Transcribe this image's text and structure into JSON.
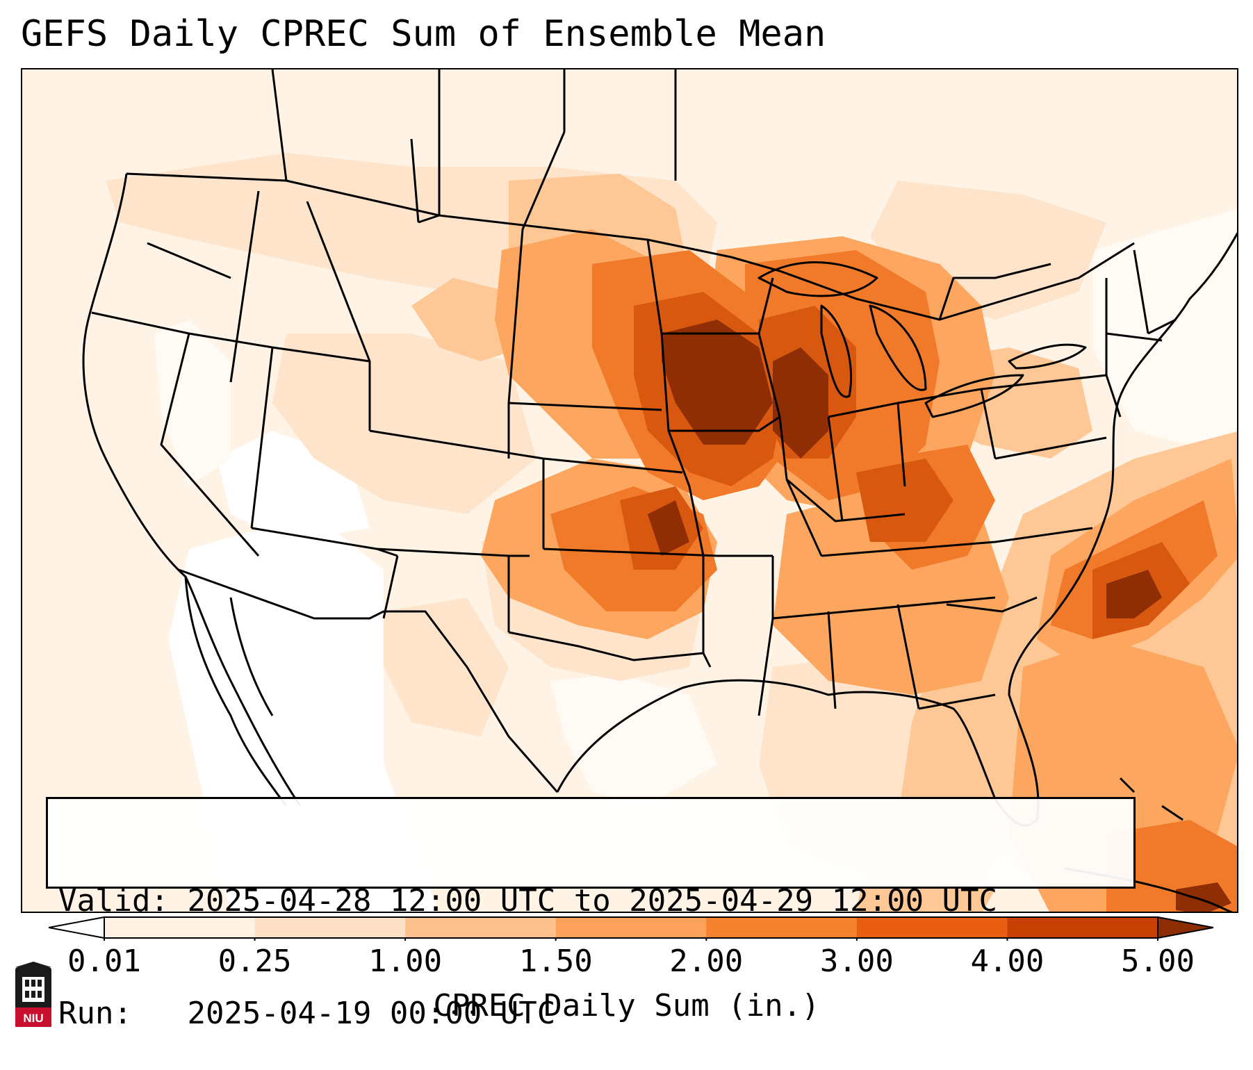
{
  "title": "GEFS Daily CPREC Sum of Ensemble Mean",
  "info": {
    "valid_label": "Valid:",
    "valid_value": "2025-04-28 12:00 UTC to 2025-04-29 12:00 UTC",
    "run_label": "Run:",
    "run_value": "2025-04-19 00:00 UTC"
  },
  "colorbar": {
    "label": "CPREC Daily Sum (in.)",
    "ticks": [
      "0.01",
      "0.25",
      "1.00",
      "1.50",
      "2.00",
      "3.00",
      "4.00",
      "5.00"
    ],
    "colors": [
      "#fff1e3",
      "#fde0c5",
      "#fdc18e",
      "#fca25c",
      "#f5822f",
      "#e85f13",
      "#c84104",
      "#8c2d04"
    ]
  },
  "logo": {
    "name": "NIU",
    "colors": {
      "red": "#c8102e",
      "black": "#1a1a1a"
    }
  }
}
